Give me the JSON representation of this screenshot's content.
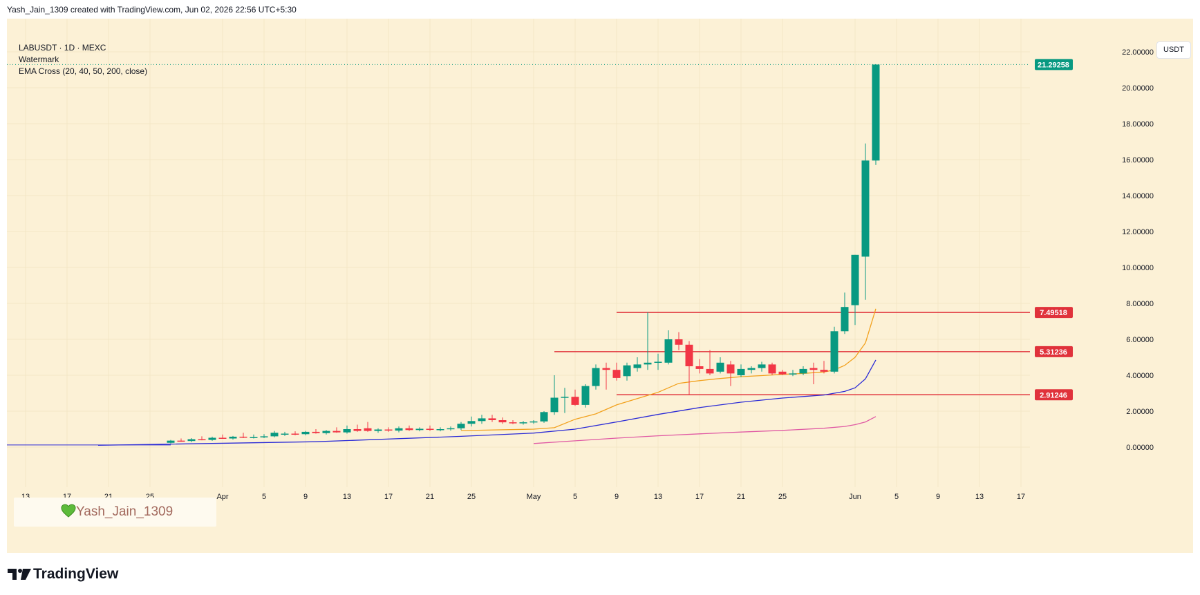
{
  "header": {
    "text": "Yash_Jain_1309 created with TradingView.com, Jun 02, 2026 22:56 UTC+5:30"
  },
  "legend": {
    "symbol": "LABUSDT · 1D · MEXC",
    "watermark_label": "Watermark",
    "indicator": "EMA Cross (20, 40, 50, 200, close)"
  },
  "currency": "USDT",
  "watermark_text": "Yash_Jain_1309",
  "footer": {
    "brand": "TradingView",
    "logo_icon": "tradingview-logo-icon"
  },
  "colors": {
    "background": "#fcf1d6",
    "up": "#089981",
    "down": "#f23645",
    "ema20": "#f2a11d",
    "ema40": "#2b2bd6",
    "ema200": "#e05aa4",
    "level": "#e0323b"
  },
  "chart_data": {
    "type": "candlestick",
    "ylim": [
      -2.2,
      24.3
    ],
    "x_ticks": [
      "13",
      "17",
      "21",
      "25",
      "Apr",
      "5",
      "9",
      "13",
      "17",
      "21",
      "25",
      "May",
      "5",
      "9",
      "13",
      "17",
      "21",
      "25",
      "Jun",
      "5",
      "9",
      "13",
      "17"
    ],
    "y_ticks": [
      "22.00000",
      "20.00000",
      "18.00000",
      "16.00000",
      "14.00000",
      "12.00000",
      "10.00000",
      "8.00000",
      "6.00000",
      "4.00000",
      "2.00000",
      "0.00000"
    ],
    "y_tick_values": [
      22,
      20,
      18,
      16,
      14,
      12,
      10,
      8,
      6,
      4,
      2,
      0
    ],
    "last_price": {
      "label": "21.29258",
      "value": 21.29258
    },
    "levels": [
      {
        "label": "7.49518",
        "value": 7.49518
      },
      {
        "label": "5.31236",
        "value": 5.31236
      },
      {
        "label": "2.91246",
        "value": 2.91246
      }
    ],
    "candles": [
      {
        "date": "2026-03-27",
        "o": 0.24,
        "h": 0.4,
        "l": 0.2,
        "c": 0.36
      },
      {
        "date": "2026-03-28",
        "o": 0.36,
        "h": 0.48,
        "l": 0.3,
        "c": 0.34
      },
      {
        "date": "2026-03-29",
        "o": 0.34,
        "h": 0.5,
        "l": 0.28,
        "c": 0.44
      },
      {
        "date": "2026-03-30",
        "o": 0.44,
        "h": 0.6,
        "l": 0.38,
        "c": 0.4
      },
      {
        "date": "2026-03-31",
        "o": 0.4,
        "h": 0.58,
        "l": 0.35,
        "c": 0.52
      },
      {
        "date": "2026-04-01",
        "o": 0.52,
        "h": 0.7,
        "l": 0.46,
        "c": 0.48
      },
      {
        "date": "2026-04-02",
        "o": 0.48,
        "h": 0.62,
        "l": 0.42,
        "c": 0.58
      },
      {
        "date": "2026-04-03",
        "o": 0.58,
        "h": 0.8,
        "l": 0.5,
        "c": 0.54
      },
      {
        "date": "2026-04-04",
        "o": 0.54,
        "h": 0.7,
        "l": 0.48,
        "c": 0.56
      },
      {
        "date": "2026-04-05",
        "o": 0.56,
        "h": 0.72,
        "l": 0.5,
        "c": 0.6
      },
      {
        "date": "2026-04-06",
        "o": 0.6,
        "h": 0.9,
        "l": 0.55,
        "c": 0.8
      },
      {
        "date": "2026-04-07",
        "o": 0.7,
        "h": 0.85,
        "l": 0.62,
        "c": 0.75
      },
      {
        "date": "2026-04-08",
        "o": 0.75,
        "h": 0.88,
        "l": 0.66,
        "c": 0.72
      },
      {
        "date": "2026-04-09",
        "o": 0.72,
        "h": 0.9,
        "l": 0.66,
        "c": 0.85
      },
      {
        "date": "2026-04-10",
        "o": 0.85,
        "h": 1.0,
        "l": 0.75,
        "c": 0.78
      },
      {
        "date": "2026-04-11",
        "o": 0.78,
        "h": 0.95,
        "l": 0.7,
        "c": 0.9
      },
      {
        "date": "2026-04-12",
        "o": 0.9,
        "h": 1.1,
        "l": 0.8,
        "c": 0.82
      },
      {
        "date": "2026-04-13",
        "o": 0.82,
        "h": 1.2,
        "l": 0.75,
        "c": 1.0
      },
      {
        "date": "2026-04-14",
        "o": 1.0,
        "h": 1.25,
        "l": 0.85,
        "c": 0.9
      },
      {
        "date": "2026-04-15",
        "o": 1.05,
        "h": 1.4,
        "l": 0.85,
        "c": 0.9
      },
      {
        "date": "2026-04-16",
        "o": 0.9,
        "h": 1.05,
        "l": 0.8,
        "c": 0.98
      },
      {
        "date": "2026-04-17",
        "o": 0.98,
        "h": 1.1,
        "l": 0.85,
        "c": 0.92
      },
      {
        "date": "2026-04-18",
        "o": 0.92,
        "h": 1.15,
        "l": 0.82,
        "c": 1.05
      },
      {
        "date": "2026-04-19",
        "o": 1.05,
        "h": 1.2,
        "l": 0.9,
        "c": 0.95
      },
      {
        "date": "2026-04-20",
        "o": 0.95,
        "h": 1.1,
        "l": 0.88,
        "c": 1.02
      },
      {
        "date": "2026-04-21",
        "o": 1.02,
        "h": 1.2,
        "l": 0.9,
        "c": 0.96
      },
      {
        "date": "2026-04-22",
        "o": 0.96,
        "h": 1.1,
        "l": 0.88,
        "c": 1.0
      },
      {
        "date": "2026-04-23",
        "o": 1.0,
        "h": 1.15,
        "l": 0.92,
        "c": 1.05
      },
      {
        "date": "2026-04-24",
        "o": 1.05,
        "h": 1.4,
        "l": 0.95,
        "c": 1.3
      },
      {
        "date": "2026-04-25",
        "o": 1.3,
        "h": 1.7,
        "l": 1.15,
        "c": 1.45
      },
      {
        "date": "2026-04-26",
        "o": 1.45,
        "h": 1.8,
        "l": 1.3,
        "c": 1.6
      },
      {
        "date": "2026-04-27",
        "o": 1.6,
        "h": 1.8,
        "l": 1.4,
        "c": 1.5
      },
      {
        "date": "2026-04-28",
        "o": 1.5,
        "h": 1.65,
        "l": 1.3,
        "c": 1.38
      },
      {
        "date": "2026-04-29",
        "o": 1.38,
        "h": 1.5,
        "l": 1.28,
        "c": 1.33
      },
      {
        "date": "2026-04-30",
        "o": 1.33,
        "h": 1.45,
        "l": 1.25,
        "c": 1.38
      },
      {
        "date": "2026-05-01",
        "o": 1.38,
        "h": 1.5,
        "l": 1.3,
        "c": 1.43
      },
      {
        "date": "2026-05-02",
        "o": 1.43,
        "h": 2.0,
        "l": 1.35,
        "c": 1.95
      },
      {
        "date": "2026-05-03",
        "o": 1.95,
        "h": 4.0,
        "l": 1.8,
        "c": 2.75
      },
      {
        "date": "2026-05-04",
        "o": 2.75,
        "h": 3.3,
        "l": 1.9,
        "c": 2.8
      },
      {
        "date": "2026-05-05",
        "o": 2.8,
        "h": 3.2,
        "l": 2.3,
        "c": 2.35
      },
      {
        "date": "2026-05-06",
        "o": 2.35,
        "h": 3.5,
        "l": 2.2,
        "c": 3.4
      },
      {
        "date": "2026-05-07",
        "o": 3.4,
        "h": 4.6,
        "l": 3.2,
        "c": 4.4
      },
      {
        "date": "2026-05-08",
        "o": 4.4,
        "h": 4.7,
        "l": 3.2,
        "c": 4.3
      },
      {
        "date": "2026-05-09",
        "o": 4.3,
        "h": 4.7,
        "l": 3.7,
        "c": 3.85
      },
      {
        "date": "2026-05-10",
        "o": 3.95,
        "h": 4.7,
        "l": 3.7,
        "c": 4.55
      },
      {
        "date": "2026-05-11",
        "o": 4.4,
        "h": 5.0,
        "l": 4.2,
        "c": 4.6
      },
      {
        "date": "2026-05-12",
        "o": 4.6,
        "h": 7.5,
        "l": 4.3,
        "c": 4.7
      },
      {
        "date": "2026-05-13",
        "o": 4.7,
        "h": 5.2,
        "l": 4.3,
        "c": 4.75
      },
      {
        "date": "2026-05-14",
        "o": 4.7,
        "h": 6.5,
        "l": 4.6,
        "c": 6.0
      },
      {
        "date": "2026-05-15",
        "o": 6.0,
        "h": 6.4,
        "l": 5.4,
        "c": 5.7
      },
      {
        "date": "2026-05-16",
        "o": 5.7,
        "h": 5.9,
        "l": 2.9,
        "c": 4.5
      },
      {
        "date": "2026-05-17",
        "o": 4.5,
        "h": 4.9,
        "l": 4.1,
        "c": 4.35
      },
      {
        "date": "2026-05-18",
        "o": 4.35,
        "h": 5.4,
        "l": 4.0,
        "c": 4.1
      },
      {
        "date": "2026-05-19",
        "o": 4.2,
        "h": 5.0,
        "l": 4.1,
        "c": 4.7
      },
      {
        "date": "2026-05-20",
        "o": 4.6,
        "h": 4.8,
        "l": 3.4,
        "c": 4.1
      },
      {
        "date": "2026-05-21",
        "o": 4.0,
        "h": 4.6,
        "l": 3.9,
        "c": 4.35
      },
      {
        "date": "2026-05-22",
        "o": 4.3,
        "h": 4.5,
        "l": 4.1,
        "c": 4.4
      },
      {
        "date": "2026-05-23",
        "o": 4.4,
        "h": 4.75,
        "l": 4.2,
        "c": 4.6
      },
      {
        "date": "2026-05-24",
        "o": 4.6,
        "h": 4.7,
        "l": 4.0,
        "c": 4.1
      },
      {
        "date": "2026-05-25",
        "o": 4.2,
        "h": 4.3,
        "l": 4.0,
        "c": 4.05
      },
      {
        "date": "2026-05-26",
        "o": 4.05,
        "h": 4.3,
        "l": 3.95,
        "c": 4.1
      },
      {
        "date": "2026-05-27",
        "o": 4.1,
        "h": 4.5,
        "l": 4.0,
        "c": 4.35
      },
      {
        "date": "2026-05-28",
        "o": 4.4,
        "h": 4.7,
        "l": 3.5,
        "c": 4.3
      },
      {
        "date": "2026-05-29",
        "o": 4.3,
        "h": 4.8,
        "l": 4.1,
        "c": 4.2
      },
      {
        "date": "2026-05-30",
        "o": 4.2,
        "h": 6.7,
        "l": 4.1,
        "c": 6.45
      },
      {
        "date": "2026-05-31",
        "o": 6.45,
        "h": 8.6,
        "l": 6.3,
        "c": 7.8
      },
      {
        "date": "2026-06-01",
        "o": 7.9,
        "h": 10.7,
        "l": 6.8,
        "c": 10.7
      },
      {
        "date": "2026-06-02",
        "o": 10.6,
        "h": 16.9,
        "l": 8.2,
        "c": 15.95
      },
      {
        "date": "2026-06-03",
        "o": 15.95,
        "h": 21.3,
        "l": 15.7,
        "c": 21.29258
      }
    ],
    "series": [
      {
        "key": "ema20",
        "points": [
          {
            "date": "2026-04-24",
            "v": 0.92
          },
          {
            "date": "2026-05-01",
            "v": 1.0
          },
          {
            "date": "2026-05-03",
            "v": 1.08
          },
          {
            "date": "2026-05-05",
            "v": 1.55
          },
          {
            "date": "2026-05-07",
            "v": 1.85
          },
          {
            "date": "2026-05-09",
            "v": 2.35
          },
          {
            "date": "2026-05-11",
            "v": 2.7
          },
          {
            "date": "2026-05-13",
            "v": 3.05
          },
          {
            "date": "2026-05-15",
            "v": 3.55
          },
          {
            "date": "2026-05-17",
            "v": 3.7
          },
          {
            "date": "2026-05-19",
            "v": 3.82
          },
          {
            "date": "2026-05-21",
            "v": 3.92
          },
          {
            "date": "2026-05-23",
            "v": 3.98
          },
          {
            "date": "2026-05-25",
            "v": 4.05
          },
          {
            "date": "2026-05-27",
            "v": 4.1
          },
          {
            "date": "2026-05-29",
            "v": 4.18
          },
          {
            "date": "2026-05-30",
            "v": 4.3
          },
          {
            "date": "2026-05-31",
            "v": 4.55
          },
          {
            "date": "2026-06-01",
            "v": 5.0
          },
          {
            "date": "2026-06-02",
            "v": 5.8
          },
          {
            "date": "2026-06-03",
            "v": 7.7
          }
        ]
      },
      {
        "key": "ema40",
        "points": [
          {
            "date": "2026-03-20",
            "v": 0.1
          },
          {
            "date": "2026-04-10",
            "v": 0.3
          },
          {
            "date": "2026-04-24",
            "v": 0.6
          },
          {
            "date": "2026-05-01",
            "v": 0.78
          },
          {
            "date": "2026-05-05",
            "v": 1.0
          },
          {
            "date": "2026-05-09",
            "v": 1.4
          },
          {
            "date": "2026-05-13",
            "v": 1.82
          },
          {
            "date": "2026-05-17",
            "v": 2.2
          },
          {
            "date": "2026-05-21",
            "v": 2.5
          },
          {
            "date": "2026-05-25",
            "v": 2.73
          },
          {
            "date": "2026-05-29",
            "v": 2.9
          },
          {
            "date": "2026-05-31",
            "v": 3.1
          },
          {
            "date": "2026-06-01",
            "v": 3.3
          },
          {
            "date": "2026-06-02",
            "v": 3.8
          },
          {
            "date": "2026-06-03",
            "v": 4.85
          }
        ]
      },
      {
        "key": "ema200",
        "points": [
          {
            "date": "2026-05-01",
            "v": 0.2
          },
          {
            "date": "2026-05-05",
            "v": 0.35
          },
          {
            "date": "2026-05-09",
            "v": 0.5
          },
          {
            "date": "2026-05-13",
            "v": 0.63
          },
          {
            "date": "2026-05-17",
            "v": 0.74
          },
          {
            "date": "2026-05-21",
            "v": 0.84
          },
          {
            "date": "2026-05-25",
            "v": 0.93
          },
          {
            "date": "2026-05-29",
            "v": 1.05
          },
          {
            "date": "2026-05-31",
            "v": 1.15
          },
          {
            "date": "2026-06-01",
            "v": 1.25
          },
          {
            "date": "2026-06-02",
            "v": 1.4
          },
          {
            "date": "2026-06-03",
            "v": 1.7
          }
        ]
      }
    ]
  }
}
